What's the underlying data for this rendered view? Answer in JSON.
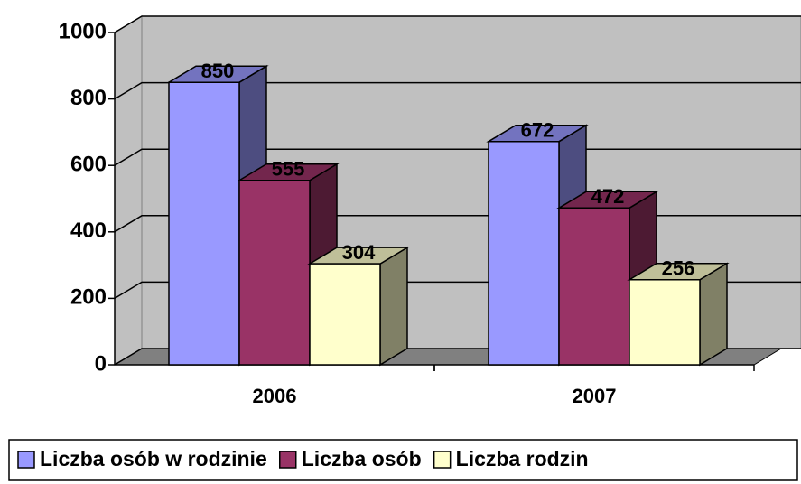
{
  "chart_data": {
    "type": "bar3d",
    "categories": [
      "2006",
      "2007"
    ],
    "series": [
      {
        "name": "Liczba osób w rodzinie",
        "color": "#9999ff",
        "values": [
          850,
          672
        ]
      },
      {
        "name": "Liczba osób",
        "color": "#993366",
        "values": [
          555,
          472
        ]
      },
      {
        "name": "Liczba rodzin",
        "color": "#ffffcc",
        "values": [
          304,
          256
        ]
      }
    ],
    "ylim": [
      0,
      1000
    ],
    "yticks": [
      0,
      200,
      400,
      600,
      800,
      1000
    ],
    "grid": true,
    "legend": "bottom"
  }
}
